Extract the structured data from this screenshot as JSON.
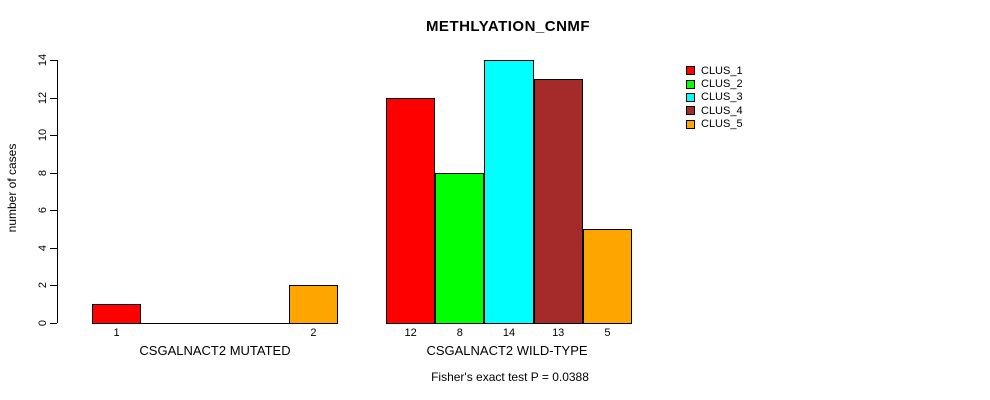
{
  "chart_data": {
    "type": "bar",
    "title": "METHLYATION_CNMF",
    "ylabel": "number of cases",
    "ylim": [
      0,
      14
    ],
    "yticks": [
      0,
      2,
      4,
      6,
      8,
      10,
      12,
      14
    ],
    "series_names": [
      "CLUS_1",
      "CLUS_2",
      "CLUS_3",
      "CLUS_4",
      "CLUS_5"
    ],
    "colors": [
      "#FF0000",
      "#00FF00",
      "#00FFFF",
      "#A52A2A",
      "#FFA500"
    ],
    "groups": [
      {
        "label": "CSGALNACT2 MUTATED",
        "values": [
          1,
          0,
          0,
          0,
          2
        ],
        "bar_labels": [
          "1",
          "",
          "",
          "",
          "2"
        ]
      },
      {
        "label": "CSGALNACT2 WILD-TYPE",
        "values": [
          12,
          8,
          14,
          13,
          5
        ],
        "bar_labels": [
          "12",
          "8",
          "14",
          "13",
          "5"
        ]
      }
    ],
    "legend_position": "right",
    "grid": false,
    "annotation": "Fisher's exact test P = 0.0388"
  }
}
